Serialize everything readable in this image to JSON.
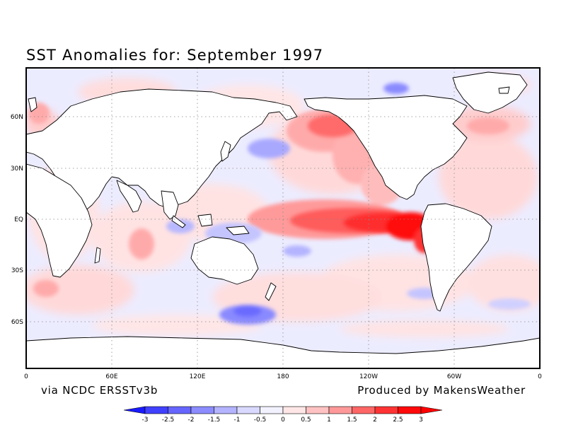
{
  "map": {
    "title": "SST Anomalies for: September 1997",
    "source_note": "via NCDC ERSSTv3b",
    "producer_note": "Produced by MakensWeather",
    "lat_labels": [
      "60N",
      "30N",
      "EQ",
      "30S",
      "60S"
    ],
    "lon_labels": [
      "0",
      "60E",
      "120E",
      "180",
      "120W",
      "60W",
      "0"
    ]
  },
  "colorbar": {
    "tick_labels": [
      "-3",
      "-2.5",
      "-2",
      "-1.5",
      "-1",
      "-0.5",
      "0",
      "0.5",
      "1",
      "1.5",
      "2",
      "2.5",
      "3"
    ],
    "colors": [
      "#1a1aff",
      "#4040ff",
      "#6666ff",
      "#8c8cff",
      "#b3b3ff",
      "#d9d9ff",
      "#f2f2ff",
      "#ffe6e6",
      "#ffc2c2",
      "#ff9999",
      "#ff6666",
      "#ff3333",
      "#ff0a0a",
      "#ff0000"
    ]
  },
  "colors": {
    "land": "#ffffff",
    "coastline": "#000000",
    "warm_anomaly": "#ff0000",
    "cool_anomaly": "#4d4dff",
    "neutral_ocean": "#ececff"
  }
}
